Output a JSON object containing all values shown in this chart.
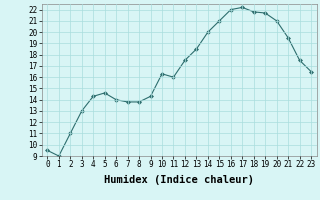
{
  "x": [
    0,
    1,
    2,
    3,
    4,
    5,
    6,
    7,
    8,
    9,
    10,
    11,
    12,
    13,
    14,
    15,
    16,
    17,
    18,
    19,
    20,
    21,
    22,
    23
  ],
  "y": [
    9.5,
    9.0,
    11.0,
    13.0,
    14.3,
    14.6,
    14.0,
    13.8,
    13.8,
    14.3,
    16.3,
    16.0,
    17.5,
    18.5,
    20.0,
    21.0,
    22.0,
    22.2,
    21.8,
    21.7,
    21.0,
    19.5,
    17.5,
    16.5
  ],
  "line_color": "#2d6e6e",
  "marker": "D",
  "marker_size": 2.0,
  "bg_color": "#d8f5f5",
  "grid_color": "#aadddd",
  "xlabel": "Humidex (Indice chaleur)",
  "ylim": [
    9,
    22.5
  ],
  "xlim": [
    -0.5,
    23.5
  ],
  "yticks": [
    9,
    10,
    11,
    12,
    13,
    14,
    15,
    16,
    17,
    18,
    19,
    20,
    21,
    22
  ],
  "xticks": [
    0,
    1,
    2,
    3,
    4,
    5,
    6,
    7,
    8,
    9,
    10,
    11,
    12,
    13,
    14,
    15,
    16,
    17,
    18,
    19,
    20,
    21,
    22,
    23
  ],
  "tick_fontsize": 5.5,
  "xlabel_fontsize": 7.5,
  "xlabel_fontweight": "bold"
}
